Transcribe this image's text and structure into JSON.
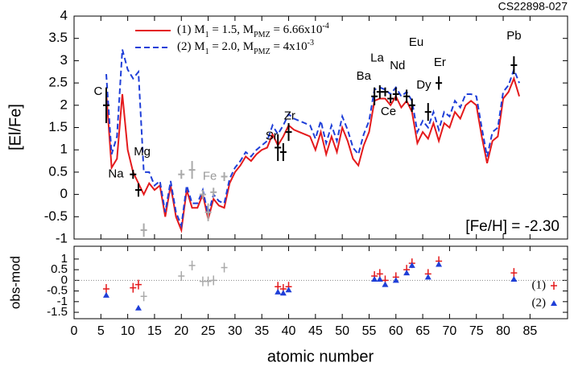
{
  "chart_data": [
    {
      "type": "line",
      "title": "CS22898-027",
      "ylabel": "[El/Fe]",
      "annotation": "[Fe/H] = -2.30",
      "xlim": [
        0,
        92
      ],
      "ylim": [
        -1,
        4
      ],
      "yticks": [
        -1,
        -0.5,
        0,
        0.5,
        1,
        1.5,
        2,
        2.5,
        3,
        3.5,
        4
      ],
      "legend": [
        [
          "(1)  M",
          "1",
          " = 1.5,  M",
          "PMZ",
          " = 6.66x10",
          "-4"
        ],
        [
          "(2)  M",
          "1",
          " = 2.0,  M",
          "PMZ",
          " = 4x10",
          "-3"
        ]
      ],
      "x": [
        6,
        7,
        8,
        9,
        10,
        11,
        12,
        13,
        14,
        15,
        16,
        17,
        18,
        19,
        20,
        21,
        22,
        23,
        24,
        25,
        26,
        27,
        28,
        29,
        30,
        31,
        32,
        33,
        34,
        35,
        36,
        37,
        38,
        39,
        40,
        41,
        42,
        43,
        44,
        45,
        46,
        47,
        48,
        49,
        50,
        51,
        52,
        53,
        54,
        55,
        56,
        57,
        58,
        59,
        60,
        61,
        62,
        63,
        64,
        65,
        66,
        67,
        68,
        69,
        70,
        71,
        72,
        73,
        74,
        75,
        76,
        77,
        78,
        79,
        80,
        81,
        82,
        83
      ],
      "series": [
        {
          "color": "#e41a1c",
          "dash": false,
          "values": [
            2.3,
            0.6,
            0.8,
            2.25,
            1.0,
            0.5,
            0.25,
            0.0,
            0.25,
            0.1,
            0.2,
            -0.5,
            0.2,
            -0.5,
            -0.8,
            0.1,
            -0.3,
            -0.3,
            0.0,
            -0.55,
            -0.1,
            -0.25,
            -0.3,
            0.25,
            0.5,
            0.65,
            0.85,
            0.75,
            0.9,
            1.0,
            1.05,
            1.35,
            1.1,
            1.3,
            1.55,
            1.45,
            1.4,
            1.35,
            1.3,
            1.0,
            1.4,
            0.9,
            1.3,
            0.95,
            1.5,
            1.2,
            0.8,
            0.65,
            1.1,
            1.4,
            2.1,
            2.15,
            2.15,
            2.0,
            2.2,
            1.95,
            2.1,
            1.85,
            1.15,
            1.4,
            1.25,
            1.6,
            1.2,
            1.6,
            1.5,
            1.85,
            1.7,
            2.0,
            2.1,
            2.0,
            1.3,
            0.7,
            1.2,
            1.3,
            2.15,
            2.3,
            2.6,
            2.2
          ]
        },
        {
          "color": "#1f3fd8",
          "dash": true,
          "values": [
            2.7,
            0.9,
            1.3,
            3.25,
            2.8,
            2.6,
            2.75,
            0.5,
            0.5,
            0.2,
            0.3,
            -0.4,
            0.3,
            -0.4,
            -0.7,
            0.2,
            -0.2,
            -0.2,
            0.1,
            -0.45,
            0.0,
            -0.15,
            -0.2,
            0.35,
            0.6,
            0.75,
            0.95,
            0.85,
            1.0,
            1.1,
            1.2,
            1.55,
            1.35,
            1.55,
            1.8,
            1.7,
            1.65,
            1.6,
            1.55,
            1.25,
            1.65,
            1.15,
            1.55,
            1.2,
            1.75,
            1.45,
            1.05,
            0.9,
            1.35,
            1.65,
            2.35,
            2.4,
            2.35,
            2.25,
            2.4,
            2.2,
            2.3,
            2.1,
            1.4,
            1.65,
            1.5,
            1.85,
            1.45,
            1.85,
            1.75,
            2.1,
            1.95,
            2.25,
            2.25,
            2.2,
            1.5,
            0.85,
            1.4,
            1.5,
            2.3,
            2.45,
            2.8,
            2.5
          ]
        }
      ],
      "observations": [
        {
          "color": "#000000",
          "x": [
            6,
            11,
            12,
            38,
            39,
            40,
            56,
            57,
            58,
            59,
            60,
            62,
            63,
            66,
            68,
            82
          ],
          "values": [
            2.0,
            0.45,
            0.1,
            1.05,
            0.95,
            1.4,
            2.2,
            2.3,
            2.3,
            2.15,
            2.25,
            2.2,
            2.0,
            1.85,
            2.5,
            2.9
          ],
          "errors": [
            0.4,
            0.1,
            0.15,
            0.3,
            0.2,
            0.2,
            0.2,
            0.15,
            0.1,
            0.1,
            0.15,
            0.15,
            0.15,
            0.2,
            0.15,
            0.2
          ]
        },
        {
          "color": "#aaaaaa",
          "x": [
            13,
            20,
            22,
            24,
            25,
            26,
            28
          ],
          "values": [
            -0.8,
            0.45,
            0.55,
            0.0,
            -0.4,
            0.05,
            0.4
          ],
          "errors": [
            0.15,
            0.1,
            0.2,
            0.1,
            0.2,
            0.1,
            0.1
          ]
        }
      ],
      "labels": [
        "C",
        "Na",
        "Mg",
        "Fe",
        "Sr",
        "Zr",
        "Ba",
        "La",
        "Ce",
        "Nd",
        "Eu",
        "Dy",
        "Er",
        "Pb"
      ],
      "label_colors": [
        "#000000",
        "#000000",
        "#000000",
        "#999999",
        "#000000",
        "#000000",
        "#000000",
        "#000000",
        "#000000",
        "#000000",
        "#000000",
        "#000000",
        "#000000",
        "#000000"
      ]
    },
    {
      "type": "scatter",
      "ylabel": "obs-mod",
      "xlabel": "atomic number",
      "xlim": [
        0,
        92
      ],
      "ylim": [
        -1.8,
        1.6
      ],
      "xticks": [
        0,
        5,
        10,
        15,
        20,
        25,
        30,
        35,
        40,
        45,
        50,
        55,
        60,
        65,
        70,
        75,
        80,
        85
      ],
      "yticks": [
        -1.5,
        -1,
        -0.5,
        0,
        0.5,
        1
      ],
      "series": [
        {
          "name": "(1)",
          "marker": "plus",
          "color": "#e41a1c",
          "x": [
            6,
            11,
            12,
            38,
            39,
            40,
            56,
            57,
            58,
            60,
            62,
            63,
            66,
            68,
            82
          ],
          "values": [
            -0.4,
            -0.35,
            -0.2,
            -0.3,
            -0.4,
            -0.3,
            0.2,
            0.3,
            0.0,
            0.15,
            0.5,
            0.8,
            0.3,
            0.9,
            0.35
          ]
        },
        {
          "name": "(2)",
          "marker": "triangle",
          "color": "#1f3fd8",
          "x": [
            6,
            12,
            38,
            39,
            40,
            56,
            57,
            58,
            60,
            62,
            63,
            66,
            68,
            82
          ],
          "values": [
            -0.7,
            -1.3,
            -0.55,
            -0.6,
            -0.45,
            0.05,
            0.05,
            -0.2,
            0.0,
            0.35,
            0.7,
            0.15,
            0.75,
            0.05
          ]
        },
        {
          "marker": "plus",
          "color": "#aaaaaa",
          "x": [
            13,
            20,
            22,
            24,
            25,
            26,
            28
          ],
          "values": [
            -0.75,
            0.2,
            0.7,
            -0.05,
            -0.05,
            0.0,
            0.6
          ]
        }
      ]
    }
  ]
}
